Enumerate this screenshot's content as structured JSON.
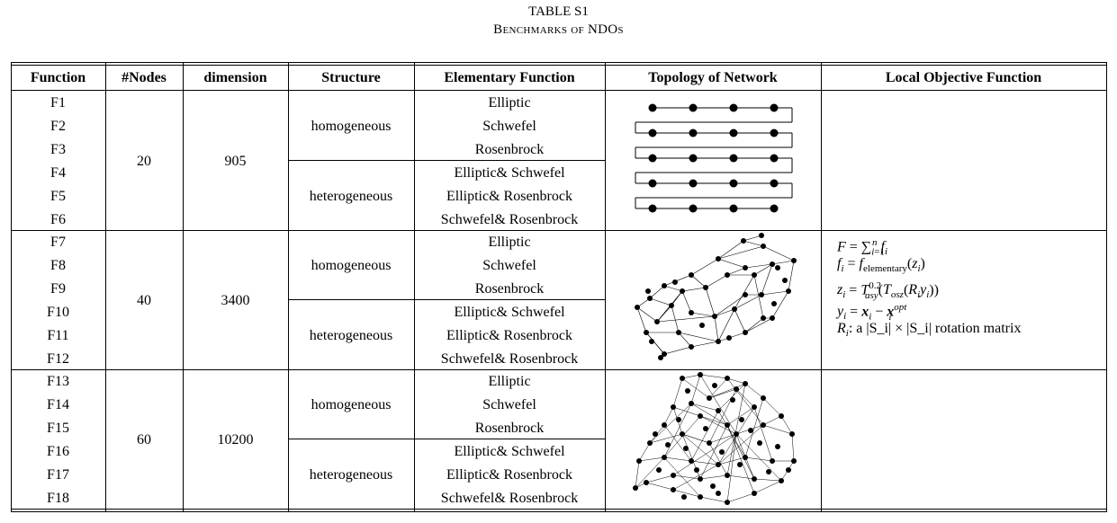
{
  "caption": {
    "label": "TABLE S1",
    "title": "Benchmarks of NDOs"
  },
  "headers": [
    "Function",
    "#Nodes",
    "dimension",
    "Structure",
    "Elementary Function",
    "Topology of Network",
    "Local Objective Function"
  ],
  "groups": [
    {
      "functions": [
        "F1",
        "F2",
        "F3",
        "F4",
        "F5",
        "F6"
      ],
      "nodes": "20",
      "dimension": "905",
      "structures": [
        "homogeneous",
        "heterogeneous"
      ],
      "elementary": [
        "Elliptic",
        "Schwefel",
        "Rosenbrock",
        "Elliptic& Schwefel",
        "Elliptic& Rosenbrock",
        "Schwefel& Rosenbrock"
      ],
      "topology_icon": "chain-network-icon"
    },
    {
      "functions": [
        "F7",
        "F8",
        "F9",
        "F10",
        "F11",
        "F12"
      ],
      "nodes": "40",
      "dimension": "3400",
      "structures": [
        "homogeneous",
        "heterogeneous"
      ],
      "elementary": [
        "Elliptic",
        "Schwefel",
        "Rosenbrock",
        "Elliptic& Schwefel",
        "Elliptic& Rosenbrock",
        "Schwefel& Rosenbrock"
      ],
      "topology_icon": "random-network-icon"
    },
    {
      "functions": [
        "F13",
        "F14",
        "F15",
        "F16",
        "F17",
        "F18"
      ],
      "nodes": "60",
      "dimension": "10200",
      "structures": [
        "homogeneous",
        "heterogeneous"
      ],
      "elementary": [
        "Elliptic",
        "Schwefel",
        "Rosenbrock",
        "Elliptic& Schwefel",
        "Elliptic& Rosenbrock",
        "Schwefel& Rosenbrock"
      ],
      "topology_icon": "dense-network-icon"
    }
  ],
  "local_objective": {
    "rotation_text": ": a |S_i| × |S_i| rotation matrix",
    "elementary_sub": "elementary"
  }
}
